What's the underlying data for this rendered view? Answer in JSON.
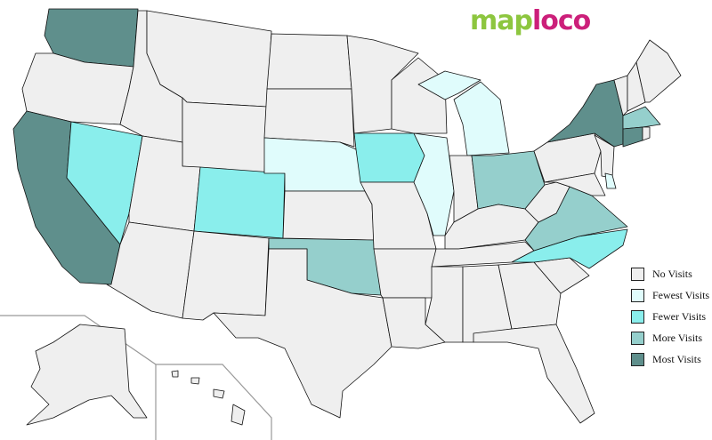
{
  "logo": {
    "part1": "map",
    "part2": "loco"
  },
  "colors": {
    "none": "#efefef",
    "fewest": "#e0fcfc",
    "fewer": "#8aeeec",
    "more": "#95cfcc",
    "most": "#5f8f8c"
  },
  "legend": [
    {
      "key": "none",
      "label": "No Visits"
    },
    {
      "key": "fewest",
      "label": "Fewest Visits"
    },
    {
      "key": "fewer",
      "label": "Fewer Visits"
    },
    {
      "key": "more",
      "label": "More Visits"
    },
    {
      "key": "most",
      "label": "Most Visits"
    }
  ],
  "states": {
    "WA": "most",
    "CA": "most",
    "NY": "most",
    "CT": "most",
    "MA": "more",
    "OH": "more",
    "VA": "more",
    "OK": "more",
    "NV": "fewer",
    "CO": "fewer",
    "IA": "fewer",
    "NC": "fewer",
    "NE": "fewest",
    "IL": "fewest",
    "MI": "fewest",
    "DE": "fewest"
  }
}
